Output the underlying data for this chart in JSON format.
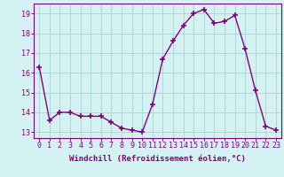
{
  "x": [
    0,
    1,
    2,
    3,
    4,
    5,
    6,
    7,
    8,
    9,
    10,
    11,
    12,
    13,
    14,
    15,
    16,
    17,
    18,
    19,
    20,
    21,
    22,
    23
  ],
  "y": [
    16.3,
    13.6,
    14.0,
    14.0,
    13.8,
    13.8,
    13.8,
    13.5,
    13.2,
    13.1,
    13.0,
    14.4,
    16.7,
    17.6,
    18.4,
    19.0,
    19.2,
    18.5,
    18.6,
    18.9,
    17.2,
    15.1,
    13.3,
    13.1
  ],
  "line_color": "#800080",
  "marker": "+",
  "markersize": 4,
  "markeredgewidth": 1.2,
  "linewidth": 1.0,
  "bg_color": "#d5f2f2",
  "grid_color": "#b0d8d8",
  "xlabel": "Windchill (Refroidissement éolien,°C)",
  "xlabel_fontsize": 6.5,
  "yticks": [
    13,
    14,
    15,
    16,
    17,
    18,
    19
  ],
  "xticks": [
    0,
    1,
    2,
    3,
    4,
    5,
    6,
    7,
    8,
    9,
    10,
    11,
    12,
    13,
    14,
    15,
    16,
    17,
    18,
    19,
    20,
    21,
    22,
    23
  ],
  "xlim": [
    -0.5,
    23.5
  ],
  "ylim": [
    12.7,
    19.5
  ],
  "tick_fontsize": 6,
  "tick_color": "#800080",
  "spine_color": "#800080"
}
